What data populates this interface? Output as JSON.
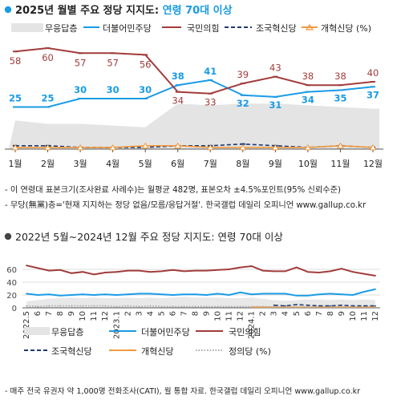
{
  "colors": {
    "accent": "#1a9be6",
    "no_party": "#e4e4e4",
    "democratic": "#1a9be6",
    "ppp": "#a23c3c",
    "rebuilding": "#1e3a6e",
    "reform": "#f29a3f",
    "justice": "#aaaaaa"
  },
  "top": {
    "title_prefix": "2025년 월별 주요 정당 지지도:",
    "title_highlight": "연령 70대 이상",
    "legend": [
      "무응답층",
      "더불어민주당",
      "국민의힘",
      "조국혁신당",
      "개혁신당 (%)"
    ]
  },
  "notes": {
    "line1": "- 이 연령대 표본크기(조사완료 사례수)는 월평균 482명, 표본오차 ±4.5%포인트(95% 신뢰수준)",
    "line2": "- 무당(無黨)층='현재 지지하는 정당 없음/모름/응답거절'. 한국갤럽 데일리 오피니언 www.gallup.co.kr"
  },
  "bottom": {
    "title": "2022년 5월~2024년 12월 주요 정당 지지도: 연령 70대 이상",
    "y_ticks": [
      "0",
      "20",
      "40",
      "60"
    ],
    "legend": [
      "무응답층",
      "더불어민주당",
      "국민의힘",
      "조국혁신당",
      "개혁신당",
      "정의당 (%)"
    ]
  },
  "footer": "- 매주 전국 유권자 약 1,000명 전화조사(CATI), 월 통합 자료. 한국갤럽 데일리 오피니언 www.gallup.co.kr",
  "chart_data": [
    {
      "type": "line",
      "title": "2025년 월별 주요 정당 지지도: 연령 70대 이상",
      "categories": [
        "1월",
        "2월",
        "3월",
        "4월",
        "5월",
        "6월",
        "7월",
        "8월",
        "9월",
        "10월",
        "11월",
        "12월"
      ],
      "series": [
        {
          "name": "무응답층",
          "kind": "area",
          "values": [
            17,
            15,
            15,
            14,
            13,
            27,
            26,
            27,
            27,
            26,
            25,
            24
          ]
        },
        {
          "name": "더불어민주당",
          "values": [
            25,
            25,
            30,
            30,
            30,
            38,
            41,
            32,
            31,
            34,
            35,
            37
          ]
        },
        {
          "name": "국민의힘",
          "values": [
            58,
            60,
            57,
            57,
            56,
            34,
            33,
            39,
            43,
            38,
            38,
            40
          ]
        },
        {
          "name": "조국혁신당",
          "values": [
            2,
            2,
            1,
            1,
            1,
            2,
            2,
            3,
            2,
            1,
            2,
            1
          ]
        },
        {
          "name": "개혁신당 (%)",
          "values": [
            1,
            1,
            1,
            1,
            2,
            2,
            1,
            1,
            1,
            1,
            2,
            1
          ]
        }
      ],
      "ylim": [
        0,
        68
      ],
      "grid": false,
      "legend_position": "top"
    },
    {
      "type": "line",
      "title": "2022년 5월~2024년 12월 주요 정당 지지도: 연령 70대 이상",
      "x_labels": [
        "2022.5",
        "6",
        "7",
        "8",
        "9",
        "10",
        "11",
        "12",
        "2023.1",
        "2",
        "3",
        "4",
        "5",
        "6",
        "7",
        "8",
        "9",
        "10",
        "11",
        "12",
        "2024.1",
        "2",
        "3",
        "4",
        "5",
        "6",
        "7",
        "8",
        "9",
        "10",
        "11",
        "12"
      ],
      "series": [
        {
          "name": "무응답층",
          "kind": "area",
          "values": [
            10,
            12,
            14,
            15,
            16,
            15,
            16,
            15,
            15,
            16,
            15,
            16,
            15,
            16,
            17,
            16,
            16,
            16,
            15,
            15,
            16,
            14,
            12,
            11,
            12,
            13,
            13,
            12,
            13,
            12,
            13,
            12
          ]
        },
        {
          "name": "더불어민주당",
          "values": [
            22,
            20,
            21,
            19,
            20,
            21,
            20,
            21,
            20,
            21,
            22,
            22,
            21,
            20,
            21,
            21,
            20,
            22,
            20,
            24,
            21,
            22,
            22,
            22,
            19,
            19,
            21,
            22,
            21,
            20,
            25,
            29
          ]
        },
        {
          "name": "국민의힘",
          "values": [
            66,
            62,
            58,
            59,
            54,
            56,
            52,
            55,
            56,
            58,
            58,
            56,
            57,
            59,
            57,
            58,
            58,
            59,
            60,
            63,
            65,
            58,
            57,
            57,
            63,
            56,
            55,
            57,
            61,
            56,
            53,
            50
          ]
        },
        {
          "name": "조국혁신당",
          "values": [
            null,
            null,
            null,
            null,
            null,
            null,
            null,
            null,
            null,
            null,
            null,
            null,
            null,
            null,
            null,
            null,
            null,
            null,
            null,
            null,
            null,
            null,
            4,
            3,
            5,
            4,
            3,
            3,
            4,
            3,
            3,
            3
          ]
        },
        {
          "name": "개혁신당",
          "values": [
            null,
            null,
            null,
            null,
            null,
            null,
            null,
            null,
            null,
            null,
            null,
            null,
            null,
            null,
            null,
            null,
            null,
            null,
            null,
            null,
            1,
            1,
            1,
            1,
            1,
            1,
            1,
            1,
            1,
            1,
            1,
            1
          ]
        },
        {
          "name": "정의당 (%)",
          "values": [
            3,
            2,
            3,
            3,
            3,
            3,
            3,
            3,
            2,
            3,
            2,
            3,
            2,
            2,
            2,
            2,
            2,
            2,
            2,
            2,
            2,
            2,
            1,
            1,
            1,
            1,
            1,
            1,
            1,
            1,
            1,
            1
          ]
        }
      ],
      "ylim": [
        0,
        70
      ],
      "grid": true,
      "legend_position": "bottom"
    }
  ]
}
